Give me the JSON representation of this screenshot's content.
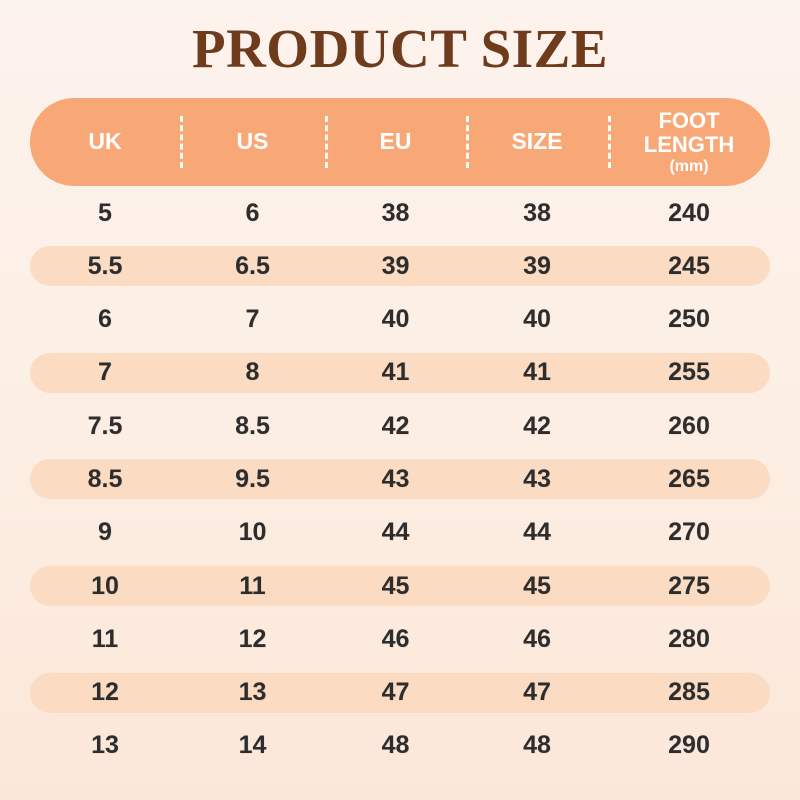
{
  "title": "PRODUCT SIZE",
  "colors": {
    "title_text": "#6F3B1D",
    "header_bg": "#F8A876",
    "header_text": "#FFFFFF",
    "row_alt_bg": "#FBDCC3",
    "cell_text": "#2D2D2D",
    "page_bg_top": "#FDF3ED",
    "page_bg_bottom": "#FBE7D9"
  },
  "table": {
    "columns": [
      {
        "label": "UK"
      },
      {
        "label": "US"
      },
      {
        "label": "EU"
      },
      {
        "label": "SIZE"
      },
      {
        "label": "FOOT LENGTH",
        "sublabel": "(mm)"
      }
    ],
    "rows": [
      [
        "5",
        "6",
        "38",
        "38",
        "240"
      ],
      [
        "5.5",
        "6.5",
        "39",
        "39",
        "245"
      ],
      [
        "6",
        "7",
        "40",
        "40",
        "250"
      ],
      [
        "7",
        "8",
        "41",
        "41",
        "255"
      ],
      [
        "7.5",
        "8.5",
        "42",
        "42",
        "260"
      ],
      [
        "8.5",
        "9.5",
        "43",
        "43",
        "265"
      ],
      [
        "9",
        "10",
        "44",
        "44",
        "270"
      ],
      [
        "10",
        "11",
        "45",
        "45",
        "275"
      ],
      [
        "11",
        "12",
        "46",
        "46",
        "280"
      ],
      [
        "12",
        "13",
        "47",
        "47",
        "285"
      ],
      [
        "13",
        "14",
        "48",
        "48",
        "290"
      ]
    ]
  },
  "chart_data": {
    "type": "table",
    "title": "PRODUCT SIZE",
    "columns": [
      "UK",
      "US",
      "EU",
      "SIZE",
      "FOOT LENGTH (mm)"
    ],
    "rows": [
      [
        5,
        6,
        38,
        38,
        240
      ],
      [
        5.5,
        6.5,
        39,
        39,
        245
      ],
      [
        6,
        7,
        40,
        40,
        250
      ],
      [
        7,
        8,
        41,
        41,
        255
      ],
      [
        7.5,
        8.5,
        42,
        42,
        260
      ],
      [
        8.5,
        9.5,
        43,
        43,
        265
      ],
      [
        9,
        10,
        44,
        44,
        270
      ],
      [
        10,
        11,
        45,
        45,
        275
      ],
      [
        11,
        12,
        46,
        46,
        280
      ],
      [
        12,
        13,
        47,
        47,
        285
      ],
      [
        13,
        14,
        48,
        48,
        290
      ]
    ]
  }
}
